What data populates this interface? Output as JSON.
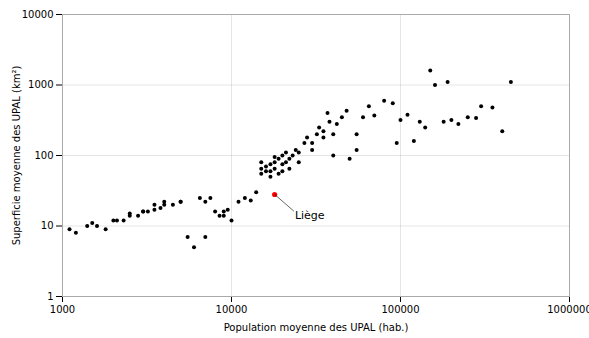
{
  "chart_data": {
    "type": "scatter",
    "xlabel": "Population moyenne des UPAL (hab.)",
    "ylabel": "Superficie moyenne des UPAL (km²)",
    "xlim": [
      1000,
      1000000
    ],
    "ylim": [
      1,
      10000
    ],
    "xticks": [
      1000,
      10000,
      100000,
      1000000
    ],
    "yticks": [
      1,
      10,
      100,
      1000,
      10000
    ],
    "log": true,
    "grid": true,
    "series": [
      {
        "color": "#000000",
        "x": [
          1100,
          1200,
          1400,
          1500,
          1600,
          1800,
          2000,
          2100,
          2300,
          2500,
          2500,
          2800,
          3000,
          3000,
          3200,
          3500,
          3500,
          3800,
          4000,
          4000,
          4500,
          5000,
          5000,
          5500,
          6000,
          6500,
          7000,
          7000,
          7500,
          8000,
          8500,
          9000,
          9000,
          9500,
          10000,
          11000,
          12000,
          13000,
          14000,
          15000,
          15000,
          15000,
          16000,
          16000,
          17000,
          17000,
          17000,
          18000,
          18000,
          18000,
          19000,
          19000,
          20000,
          20000,
          20000,
          21000,
          21000,
          22000,
          22000,
          23000,
          24000,
          25000,
          25000,
          27000,
          28000,
          30000,
          30000,
          32000,
          33000,
          35000,
          35000,
          37000,
          38000,
          40000,
          40000,
          42000,
          45000,
          48000,
          50000,
          55000,
          55000,
          60000,
          65000,
          70000,
          80000,
          90000,
          95000,
          100000,
          110000,
          120000,
          130000,
          140000,
          150000,
          160000,
          180000,
          190000,
          200000,
          220000,
          250000,
          280000,
          300000,
          350000,
          400000,
          450000
        ],
        "values": [
          9,
          8,
          10,
          11,
          10,
          9,
          12,
          12,
          12,
          14,
          15,
          14,
          16,
          16,
          16,
          17,
          20,
          18,
          20,
          22,
          20,
          22,
          22,
          7,
          5,
          25,
          22,
          7,
          25,
          16,
          14,
          14,
          16,
          17,
          12,
          22,
          25,
          23,
          30,
          55,
          65,
          80,
          60,
          70,
          50,
          60,
          75,
          65,
          80,
          95,
          55,
          90,
          60,
          75,
          100,
          80,
          110,
          65,
          90,
          100,
          120,
          80,
          110,
          150,
          180,
          120,
          150,
          200,
          250,
          180,
          220,
          400,
          300,
          100,
          200,
          280,
          350,
          430,
          90,
          120,
          200,
          350,
          500,
          370,
          600,
          550,
          150,
          320,
          380,
          160,
          300,
          250,
          1600,
          1000,
          300,
          1100,
          320,
          280,
          350,
          340,
          500,
          480,
          220,
          1100
        ]
      },
      {
        "color": "#ff0000",
        "x": [
          18000
        ],
        "values": [
          28
        ]
      }
    ],
    "annotations": [
      {
        "text": "Liège",
        "x": 18000,
        "y": 28
      }
    ]
  }
}
